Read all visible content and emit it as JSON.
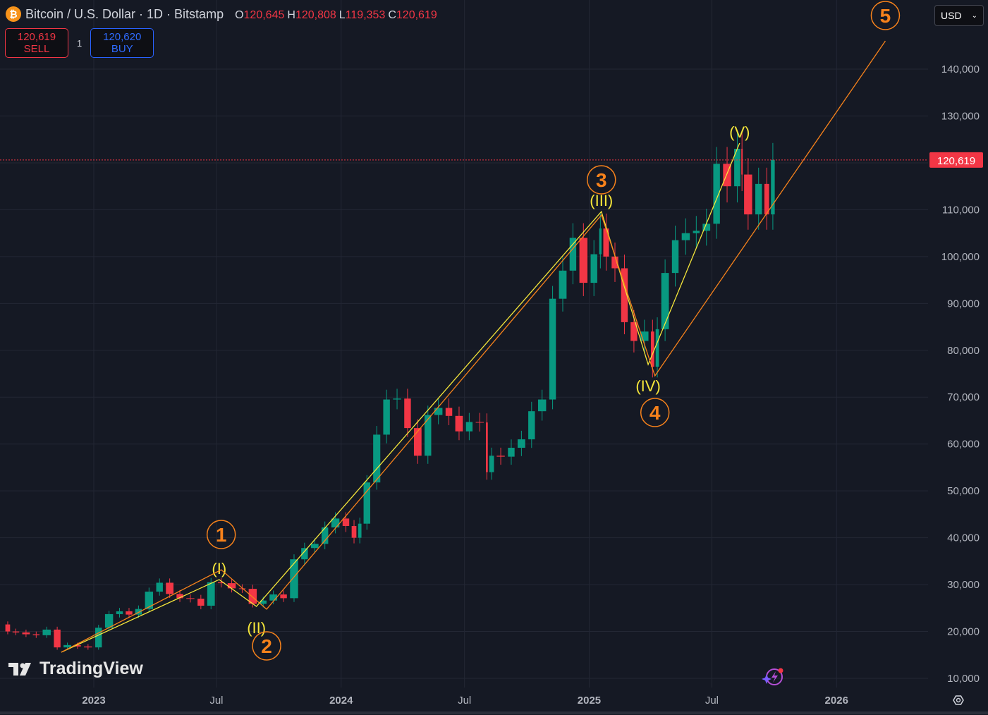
{
  "header": {
    "symbol_title": "Bitcoin / U.S. Dollar · 1D · Bitstamp",
    "coin_icon": "bitcoin-icon",
    "ohlc": [
      {
        "k": "O",
        "v": "120,645"
      },
      {
        "k": "H",
        "v": "120,808"
      },
      {
        "k": "L",
        "v": "119,353"
      },
      {
        "k": "C",
        "v": "120,619"
      }
    ]
  },
  "trade": {
    "sell_price": "120,619",
    "sell_label": "SELL",
    "quantity": "1",
    "buy_price": "120,620",
    "buy_label": "BUY"
  },
  "currency": {
    "value": "USD"
  },
  "branding": {
    "logo_text": "TradingView"
  },
  "colors": {
    "background": "#151924",
    "up": "#089981",
    "down": "#f23645",
    "wave_minor": "#f5e63a",
    "wave_major": "#f7821b",
    "last_price": "#f23645",
    "grid": "#232734"
  },
  "chart_data": {
    "type": "candlestick",
    "title": "",
    "xlabel": "",
    "ylabel": "",
    "x_ticks": [
      {
        "date": "2023-01-01",
        "label": "2023",
        "bold": true
      },
      {
        "date": "2023-07-01",
        "label": "Jul"
      },
      {
        "date": "2024-01-01",
        "label": "2024",
        "bold": true
      },
      {
        "date": "2024-07-01",
        "label": "Jul"
      },
      {
        "date": "2025-01-01",
        "label": "2025",
        "bold": true
      },
      {
        "date": "2025-07-01",
        "label": "Jul"
      },
      {
        "date": "2026-01-01",
        "label": "2026",
        "bold": true
      }
    ],
    "y_ticks": [
      10000,
      20000,
      30000,
      40000,
      50000,
      60000,
      70000,
      80000,
      90000,
      100000,
      110000,
      120000,
      130000,
      140000
    ],
    "y_tick_labels": [
      "10,000",
      "20,000",
      "30,000",
      "40,000",
      "50,000",
      "60,000",
      "70,000",
      "80,000",
      "90,000",
      "100,000",
      "110,000",
      "",
      "130,000",
      "140,000"
    ],
    "ylim": [
      10000,
      140000
    ],
    "grid": true,
    "last_price": 120619,
    "last_price_label": "120,619",
    "closes": [
      [
        "2022-08-22",
        21500
      ],
      [
        "2022-09-01",
        20000
      ],
      [
        "2022-09-15",
        19800
      ],
      [
        "2022-10-01",
        19400
      ],
      [
        "2022-10-15",
        19200
      ],
      [
        "2022-11-01",
        20400
      ],
      [
        "2022-11-15",
        16600
      ],
      [
        "2022-12-01",
        17100
      ],
      [
        "2022-12-15",
        16800
      ],
      [
        "2023-01-01",
        16600
      ],
      [
        "2023-01-15",
        20800
      ],
      [
        "2023-02-01",
        23700
      ],
      [
        "2023-02-15",
        24300
      ],
      [
        "2023-03-01",
        23600
      ],
      [
        "2023-03-15",
        24800
      ],
      [
        "2023-04-01",
        28500
      ],
      [
        "2023-04-15",
        30400
      ],
      [
        "2023-05-01",
        28000
      ],
      [
        "2023-05-15",
        27100
      ],
      [
        "2023-06-01",
        27000
      ],
      [
        "2023-06-15",
        25500
      ],
      [
        "2023-07-01",
        30500
      ],
      [
        "2023-07-15",
        30300
      ],
      [
        "2023-08-01",
        29200
      ],
      [
        "2023-08-15",
        29100
      ],
      [
        "2023-09-01",
        25900
      ],
      [
        "2023-09-15",
        26600
      ],
      [
        "2023-10-01",
        27900
      ],
      [
        "2023-10-15",
        27100
      ],
      [
        "2023-11-01",
        35400
      ],
      [
        "2023-11-15",
        37800
      ],
      [
        "2023-12-01",
        38700
      ],
      [
        "2023-12-15",
        42200
      ],
      [
        "2024-01-01",
        44100
      ],
      [
        "2024-01-15",
        42500
      ],
      [
        "2024-01-25",
        40000
      ],
      [
        "2024-02-01",
        43000
      ],
      [
        "2024-02-15",
        51800
      ],
      [
        "2024-03-01",
        62000
      ],
      [
        "2024-03-15",
        69500
      ],
      [
        "2024-04-01",
        69700
      ],
      [
        "2024-04-15",
        63400
      ],
      [
        "2024-05-01",
        57500
      ],
      [
        "2024-05-15",
        66200
      ],
      [
        "2024-06-01",
        67700
      ],
      [
        "2024-06-15",
        66000
      ],
      [
        "2024-07-01",
        62700
      ],
      [
        "2024-07-15",
        64700
      ],
      [
        "2024-08-01",
        64600
      ],
      [
        "2024-08-05",
        54000
      ],
      [
        "2024-08-15",
        57500
      ],
      [
        "2024-09-01",
        57300
      ],
      [
        "2024-09-15",
        59200
      ],
      [
        "2024-10-01",
        61000
      ],
      [
        "2024-10-15",
        67000
      ],
      [
        "2024-11-01",
        69500
      ],
      [
        "2024-11-15",
        91000
      ],
      [
        "2024-12-01",
        97000
      ],
      [
        "2024-12-15",
        104000
      ],
      [
        "2025-01-01",
        94400
      ],
      [
        "2025-01-15",
        100500
      ],
      [
        "2025-01-20",
        106000
      ],
      [
        "2025-02-01",
        100000
      ],
      [
        "2025-02-15",
        97500
      ],
      [
        "2025-03-01",
        86000
      ],
      [
        "2025-03-15",
        82000
      ],
      [
        "2025-04-01",
        84000
      ],
      [
        "2025-04-08",
        76500
      ],
      [
        "2025-04-15",
        84500
      ],
      [
        "2025-05-01",
        96500
      ],
      [
        "2025-05-15",
        103500
      ],
      [
        "2025-06-01",
        105000
      ],
      [
        "2025-06-15",
        105500
      ],
      [
        "2025-07-01",
        107000
      ],
      [
        "2025-07-15",
        119800
      ],
      [
        "2025-08-01",
        115000
      ],
      [
        "2025-08-14",
        123000
      ],
      [
        "2025-08-15",
        117500
      ],
      [
        "2025-09-01",
        109000
      ],
      [
        "2025-09-15",
        115500
      ],
      [
        "2025-09-25",
        109000
      ],
      [
        "2025-10-03",
        120619
      ]
    ],
    "wave_minor": {
      "points": [
        [
          "2022-11-14",
          15570
        ],
        [
          "2023-07-05",
          31070
        ],
        [
          "2023-08-29",
          25350
        ],
        [
          "2025-01-19",
          109600
        ],
        [
          "2025-03-29",
          76960
        ],
        [
          "2025-08-11",
          124200
        ]
      ],
      "labels": [
        "",
        "(I)",
        "(II)",
        "(III)",
        "(IV)",
        "(V)"
      ]
    },
    "wave_major": {
      "points": [
        [
          "2022-11-14",
          15570
        ],
        [
          "2023-07-08",
          33170
        ],
        [
          "2023-09-13",
          24750
        ],
        [
          "2025-01-19",
          108860
        ],
        [
          "2025-04-08",
          74550
        ],
        [
          "2026-03-14",
          146000
        ]
      ],
      "labels": [
        "",
        "1",
        "2",
        "3",
        "4",
        "5"
      ]
    }
  }
}
